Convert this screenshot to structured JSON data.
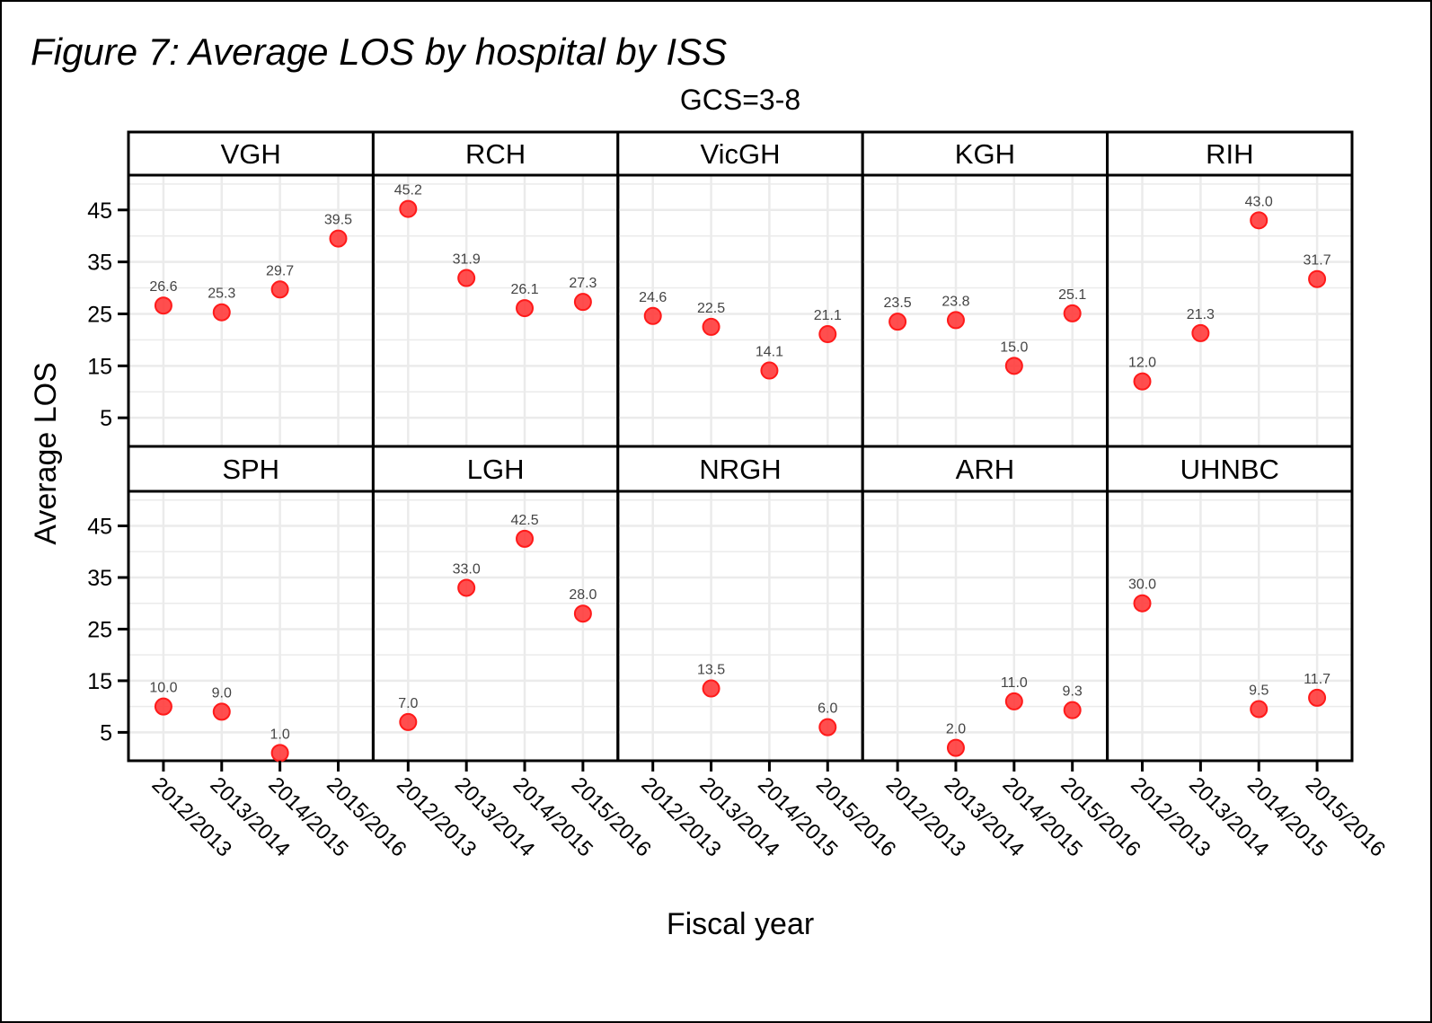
{
  "chart_data": {
    "type": "scatter",
    "title": "Figure 7: Average LOS by hospital by ISS",
    "subtitle": "GCS=3-8",
    "xlabel": "Fiscal year",
    "ylabel": "Average LOS",
    "categories": [
      "2012/2013",
      "2013/2014",
      "2014/2015",
      "2015/2016"
    ],
    "yticks": [
      5,
      15,
      25,
      35,
      45
    ],
    "ylim": [
      -0.5,
      51.7
    ],
    "grid": true,
    "point_color": "#ff3b3b",
    "layout": "facet grid 2 rows x 5 columns",
    "panels": [
      {
        "name": "VGH",
        "values": [
          26.6,
          25.3,
          29.7,
          39.5
        ]
      },
      {
        "name": "RCH",
        "values": [
          45.2,
          31.9,
          26.1,
          27.3
        ]
      },
      {
        "name": "VicGH",
        "values": [
          24.6,
          22.5,
          14.1,
          21.1
        ]
      },
      {
        "name": "KGH",
        "values": [
          23.5,
          23.8,
          15.0,
          25.1
        ]
      },
      {
        "name": "RIH",
        "values": [
          12.0,
          21.3,
          43.0,
          31.7
        ]
      },
      {
        "name": "SPH",
        "values": [
          10.0,
          9.0,
          1.0,
          null
        ]
      },
      {
        "name": "LGH",
        "values": [
          7.0,
          33.0,
          42.5,
          28.0
        ]
      },
      {
        "name": "NRGH",
        "values": [
          null,
          13.5,
          null,
          6.0
        ]
      },
      {
        "name": "ARH",
        "values": [
          null,
          2.0,
          11.0,
          9.3
        ]
      },
      {
        "name": "UHNBC",
        "values": [
          30.0,
          null,
          9.5,
          11.7
        ]
      }
    ]
  }
}
